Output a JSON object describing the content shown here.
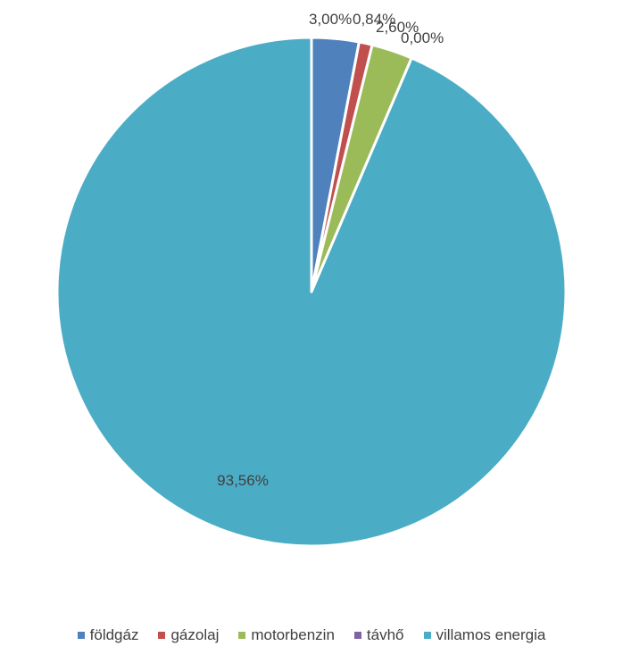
{
  "chart_data": {
    "type": "pie",
    "title": "",
    "categories": [
      "földgáz",
      "gázolaj",
      "motorbenzin",
      "távhő",
      "villamos energia"
    ],
    "values": [
      3.0,
      0.84,
      2.6,
      0.0,
      93.56
    ],
    "data_labels": [
      "3,00%",
      "0,84%",
      "2,60%",
      "0,00%",
      "93,56%"
    ],
    "colors": [
      "#4F81BD",
      "#C0504D",
      "#9BBB59",
      "#8064A2",
      "#4BACC6"
    ],
    "start_angle": "12 o'clock",
    "direction": "clockwise",
    "legend_position": "bottom"
  }
}
